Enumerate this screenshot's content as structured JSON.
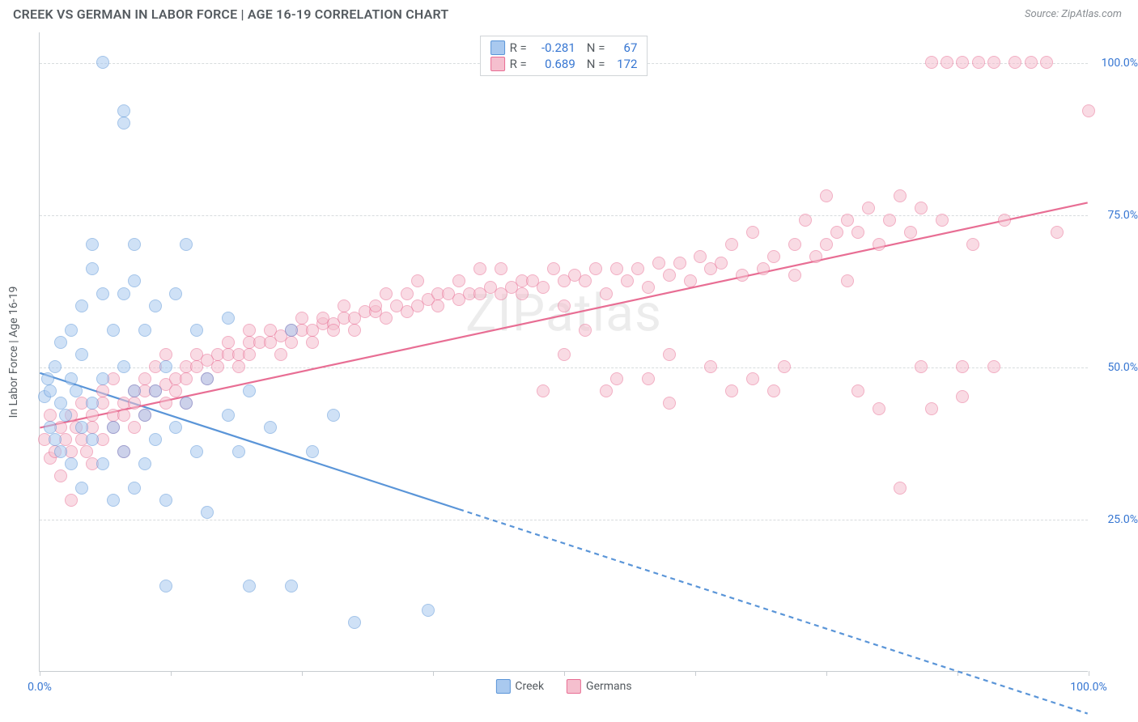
{
  "header": {
    "title": "CREEK VS GERMAN IN LABOR FORCE | AGE 16-19 CORRELATION CHART",
    "source": "Source: ZipAtlas.com"
  },
  "watermark": "ZIPatlas",
  "chart": {
    "type": "scatter",
    "y_axis_title": "In Labor Force | Age 16-19",
    "xlim": [
      0,
      100
    ],
    "ylim": [
      0,
      105
    ],
    "x_ticks": [
      0,
      12.5,
      25,
      37.5,
      50,
      62.5,
      75,
      87.5,
      100
    ],
    "x_tick_labels": {
      "0": "0.0%",
      "100": "100.0%"
    },
    "y_gridlines": [
      25,
      50,
      75,
      100
    ],
    "y_tick_labels": {
      "25": "25.0%",
      "50": "50.0%",
      "75": "75.0%",
      "100": "100.0%"
    },
    "background_color": "#ffffff",
    "grid_color": "#d8dcde",
    "axis_color": "#c7ccd0",
    "label_color": "#3676d2",
    "marker_radius": 8,
    "marker_opacity": 0.55
  },
  "series": {
    "creek": {
      "label": "Creek",
      "color_fill": "#a9c9ef",
      "color_stroke": "#5a95d8",
      "R": "-0.281",
      "N": "67",
      "reg_y_at_0": 49,
      "reg_y_at_100": -7,
      "solid_until_x": 40,
      "points": [
        [
          0.5,
          45
        ],
        [
          0.8,
          48
        ],
        [
          1,
          40
        ],
        [
          1,
          46
        ],
        [
          1.5,
          38
        ],
        [
          1.5,
          50
        ],
        [
          2,
          44
        ],
        [
          2,
          36
        ],
        [
          2,
          54
        ],
        [
          2.5,
          42
        ],
        [
          3,
          48
        ],
        [
          3,
          56
        ],
        [
          3,
          34
        ],
        [
          3.5,
          46
        ],
        [
          4,
          40
        ],
        [
          4,
          60
        ],
        [
          4,
          52
        ],
        [
          4,
          30
        ],
        [
          5,
          44
        ],
        [
          5,
          38
        ],
        [
          5,
          66
        ],
        [
          5,
          70
        ],
        [
          6,
          62
        ],
        [
          6,
          48
        ],
        [
          6,
          34
        ],
        [
          6,
          100
        ],
        [
          7,
          56
        ],
        [
          7,
          40
        ],
        [
          7,
          28
        ],
        [
          8,
          50
        ],
        [
          8,
          92
        ],
        [
          8,
          90
        ],
        [
          8,
          36
        ],
        [
          8,
          62
        ],
        [
          9,
          46
        ],
        [
          9,
          30
        ],
        [
          9,
          64
        ],
        [
          9,
          70
        ],
        [
          10,
          42
        ],
        [
          10,
          56
        ],
        [
          10,
          34
        ],
        [
          11,
          46
        ],
        [
          11,
          38
        ],
        [
          11,
          60
        ],
        [
          12,
          50
        ],
        [
          12,
          28
        ],
        [
          12,
          14
        ],
        [
          13,
          62
        ],
        [
          13,
          40
        ],
        [
          14,
          44
        ],
        [
          14,
          70
        ],
        [
          15,
          36
        ],
        [
          15,
          56
        ],
        [
          16,
          48
        ],
        [
          16,
          26
        ],
        [
          18,
          42
        ],
        [
          18,
          58
        ],
        [
          19,
          36
        ],
        [
          20,
          46
        ],
        [
          20,
          14
        ],
        [
          22,
          40
        ],
        [
          24,
          14
        ],
        [
          24,
          56
        ],
        [
          26,
          36
        ],
        [
          28,
          42
        ],
        [
          30,
          8
        ],
        [
          37,
          10
        ]
      ]
    },
    "germans": {
      "label": "Germans",
      "color_fill": "#f5bfce",
      "color_stroke": "#e86e94",
      "R": "0.689",
      "N": "172",
      "reg_y_at_0": 40,
      "reg_y_at_100": 77,
      "solid_until_x": 100,
      "points": [
        [
          0.5,
          38
        ],
        [
          1,
          35
        ],
        [
          1,
          42
        ],
        [
          1.5,
          36
        ],
        [
          2,
          40
        ],
        [
          2,
          32
        ],
        [
          2.5,
          38
        ],
        [
          3,
          42
        ],
        [
          3,
          36
        ],
        [
          3,
          28
        ],
        [
          3.5,
          40
        ],
        [
          4,
          38
        ],
        [
          4,
          44
        ],
        [
          4.5,
          36
        ],
        [
          5,
          42
        ],
        [
          5,
          40
        ],
        [
          5,
          34
        ],
        [
          6,
          44
        ],
        [
          6,
          38
        ],
        [
          6,
          46
        ],
        [
          7,
          42
        ],
        [
          7,
          40
        ],
        [
          7,
          48
        ],
        [
          8,
          44
        ],
        [
          8,
          42
        ],
        [
          8,
          36
        ],
        [
          9,
          46
        ],
        [
          9,
          44
        ],
        [
          9,
          40
        ],
        [
          10,
          46
        ],
        [
          10,
          48
        ],
        [
          10,
          42
        ],
        [
          11,
          46
        ],
        [
          11,
          50
        ],
        [
          12,
          47
        ],
        [
          12,
          44
        ],
        [
          12,
          52
        ],
        [
          13,
          48
        ],
        [
          13,
          46
        ],
        [
          14,
          50
        ],
        [
          14,
          48
        ],
        [
          14,
          44
        ],
        [
          15,
          50
        ],
        [
          15,
          52
        ],
        [
          16,
          51
        ],
        [
          16,
          48
        ],
        [
          17,
          52
        ],
        [
          17,
          50
        ],
        [
          18,
          52
        ],
        [
          18,
          54
        ],
        [
          19,
          52
        ],
        [
          19,
          50
        ],
        [
          20,
          54
        ],
        [
          20,
          52
        ],
        [
          20,
          56
        ],
        [
          21,
          54
        ],
        [
          22,
          54
        ],
        [
          22,
          56
        ],
        [
          23,
          55
        ],
        [
          23,
          52
        ],
        [
          24,
          56
        ],
        [
          24,
          54
        ],
        [
          25,
          56
        ],
        [
          25,
          58
        ],
        [
          26,
          56
        ],
        [
          26,
          54
        ],
        [
          27,
          57
        ],
        [
          27,
          58
        ],
        [
          28,
          57
        ],
        [
          28,
          56
        ],
        [
          29,
          58
        ],
        [
          29,
          60
        ],
        [
          30,
          58
        ],
        [
          30,
          56
        ],
        [
          31,
          59
        ],
        [
          32,
          59
        ],
        [
          32,
          60
        ],
        [
          33,
          58
        ],
        [
          33,
          62
        ],
        [
          34,
          60
        ],
        [
          35,
          59
        ],
        [
          35,
          62
        ],
        [
          36,
          60
        ],
        [
          36,
          64
        ],
        [
          37,
          61
        ],
        [
          38,
          60
        ],
        [
          38,
          62
        ],
        [
          39,
          62
        ],
        [
          40,
          61
        ],
        [
          40,
          64
        ],
        [
          41,
          62
        ],
        [
          42,
          62
        ],
        [
          42,
          66
        ],
        [
          43,
          63
        ],
        [
          44,
          62
        ],
        [
          44,
          66
        ],
        [
          45,
          63
        ],
        [
          46,
          64
        ],
        [
          46,
          62
        ],
        [
          47,
          64
        ],
        [
          48,
          63
        ],
        [
          48,
          46
        ],
        [
          49,
          66
        ],
        [
          50,
          64
        ],
        [
          50,
          60
        ],
        [
          50,
          52
        ],
        [
          51,
          65
        ],
        [
          52,
          64
        ],
        [
          52,
          56
        ],
        [
          53,
          66
        ],
        [
          54,
          62
        ],
        [
          54,
          46
        ],
        [
          55,
          66
        ],
        [
          55,
          48
        ],
        [
          56,
          64
        ],
        [
          57,
          66
        ],
        [
          58,
          63
        ],
        [
          58,
          48
        ],
        [
          59,
          67
        ],
        [
          60,
          65
        ],
        [
          60,
          44
        ],
        [
          60,
          52
        ],
        [
          61,
          67
        ],
        [
          62,
          64
        ],
        [
          63,
          68
        ],
        [
          64,
          50
        ],
        [
          64,
          66
        ],
        [
          65,
          67
        ],
        [
          66,
          46
        ],
        [
          66,
          70
        ],
        [
          67,
          65
        ],
        [
          68,
          48
        ],
        [
          68,
          72
        ],
        [
          69,
          66
        ],
        [
          70,
          68
        ],
        [
          70,
          46
        ],
        [
          71,
          50
        ],
        [
          72,
          70
        ],
        [
          72,
          65
        ],
        [
          73,
          74
        ],
        [
          74,
          68
        ],
        [
          75,
          78
        ],
        [
          75,
          70
        ],
        [
          76,
          72
        ],
        [
          77,
          74
        ],
        [
          77,
          64
        ],
        [
          78,
          46
        ],
        [
          78,
          72
        ],
        [
          79,
          76
        ],
        [
          80,
          70
        ],
        [
          80,
          43
        ],
        [
          81,
          74
        ],
        [
          82,
          30
        ],
        [
          82,
          78
        ],
        [
          83,
          72
        ],
        [
          84,
          50
        ],
        [
          84,
          76
        ],
        [
          85,
          43
        ],
        [
          85,
          100
        ],
        [
          86,
          74
        ],
        [
          86.5,
          100
        ],
        [
          88,
          45
        ],
        [
          88,
          100
        ],
        [
          88,
          50
        ],
        [
          89,
          70
        ],
        [
          89.5,
          100
        ],
        [
          91,
          100
        ],
        [
          91,
          50
        ],
        [
          92,
          74
        ],
        [
          93,
          100
        ],
        [
          94.5,
          100
        ],
        [
          96,
          100
        ],
        [
          97,
          72
        ],
        [
          100,
          92
        ]
      ]
    }
  },
  "bottom_legend": [
    {
      "label": "Creek",
      "fill": "#a9c9ef",
      "stroke": "#5a95d8"
    },
    {
      "label": "Germans",
      "fill": "#f5bfce",
      "stroke": "#e86e94"
    }
  ]
}
